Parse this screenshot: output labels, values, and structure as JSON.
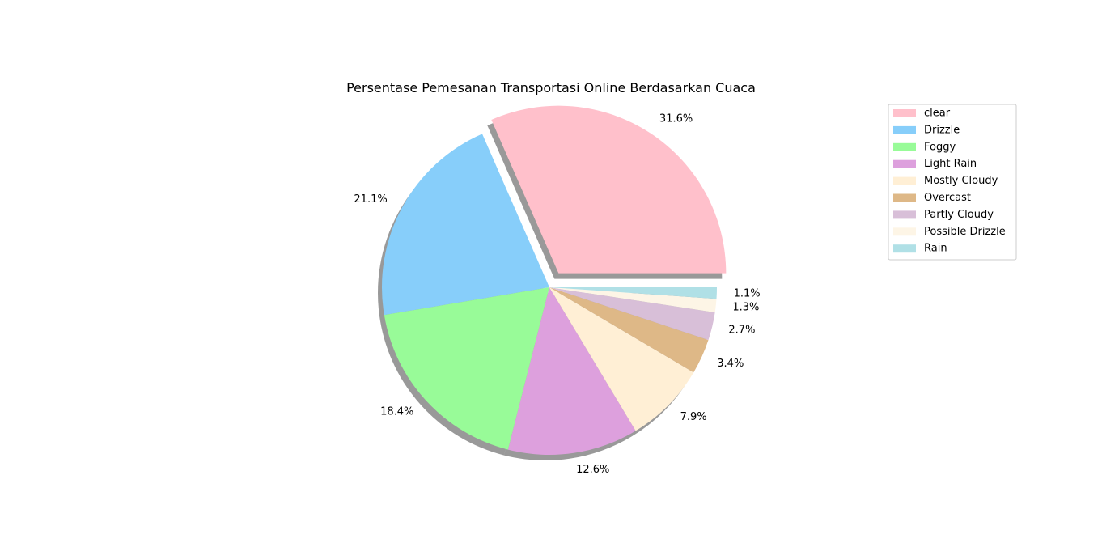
{
  "chart_data": {
    "type": "pie",
    "title": "Persentase Pemesanan Transportasi Online Berdasarkan Cuaca",
    "legend_position": "upper-right (outside)",
    "shadow": true,
    "start_angle_deg": 0,
    "direction": "counterclockwise",
    "exploded": [
      "clear"
    ],
    "slices": [
      {
        "label": "clear",
        "value": 31.6,
        "pct_label": "31.6%",
        "color": "#FFC0CB"
      },
      {
        "label": "Drizzle",
        "value": 21.1,
        "pct_label": "21.1%",
        "color": "#87CEFA"
      },
      {
        "label": "Foggy",
        "value": 18.4,
        "pct_label": "18.4%",
        "color": "#98FB98"
      },
      {
        "label": "Light Rain",
        "value": 12.6,
        "pct_label": "12.6%",
        "color": "#DDA0DD"
      },
      {
        "label": "Mostly Cloudy",
        "value": 7.9,
        "pct_label": "7.9%",
        "color": "#FFEFD5"
      },
      {
        "label": "Overcast",
        "value": 3.4,
        "pct_label": "3.4%",
        "color": "#DEB887"
      },
      {
        "label": "Partly Cloudy",
        "value": 2.7,
        "pct_label": "2.7%",
        "color": "#D8BFD8"
      },
      {
        "label": "Possible Drizzle",
        "value": 1.3,
        "pct_label": "1.3%",
        "color": "#FDF5E6"
      },
      {
        "label": "Rain",
        "value": 1.1,
        "pct_label": "1.1%",
        "color": "#B0E0E6"
      }
    ]
  }
}
